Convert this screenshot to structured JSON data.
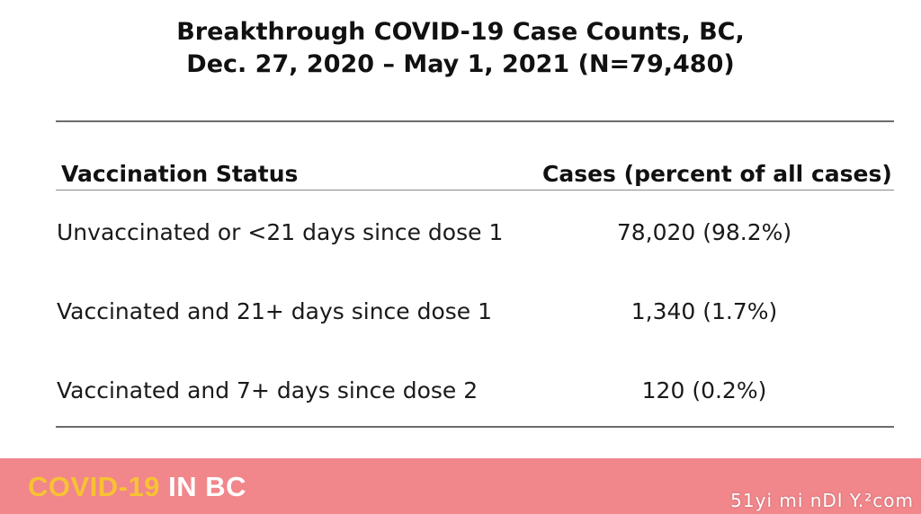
{
  "title": {
    "line1": "Breakthrough COVID-19 Case Counts, BC,",
    "line2": "Dec. 27, 2020 – May 1, 2021 (N=79,480)"
  },
  "table": {
    "headers": {
      "status": "Vaccination Status",
      "cases": "Cases (percent of all cases)"
    },
    "rows": [
      {
        "status": "Unvaccinated or <21 days since dose 1",
        "cases": "78,020 (98.2%)"
      },
      {
        "status": "Vaccinated and 21+ days since dose 1",
        "cases": "1,340 (1.7%)"
      },
      {
        "status": "Vaccinated and 7+ days since dose 2",
        "cases": "120 (0.2%)"
      }
    ]
  },
  "footer": {
    "brand_part1": "COVID-19",
    "brand_part2": " IN BC",
    "watermark": "51yi mi nDl Y.²com",
    "colors": {
      "background": "#f1868b",
      "brand_yellow": "#f7c233",
      "brand_white": "#ffffff"
    }
  }
}
